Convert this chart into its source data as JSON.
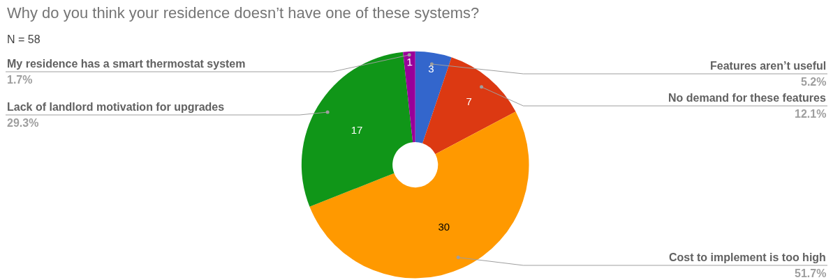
{
  "chart_data": {
    "type": "donut",
    "title": "Why do you think your residence doesn’t have one of these systems?",
    "subtitle": "N = 58",
    "categories": [
      "Features aren’t useful",
      "No demand for these features",
      "Cost to implement is too high",
      "Lack of landlord motivation for upgrades",
      "My residence has a smart thermostat system"
    ],
    "values": [
      3,
      7,
      30,
      17,
      1
    ],
    "colors": [
      "#3366cc",
      "#dc3912",
      "#ff9900",
      "#109618",
      "#990099"
    ],
    "annotations": [
      "5.2%",
      "12.1%",
      "51.7%",
      "29.3%",
      "1.7%"
    ],
    "data_labels": true,
    "legend": false
  }
}
